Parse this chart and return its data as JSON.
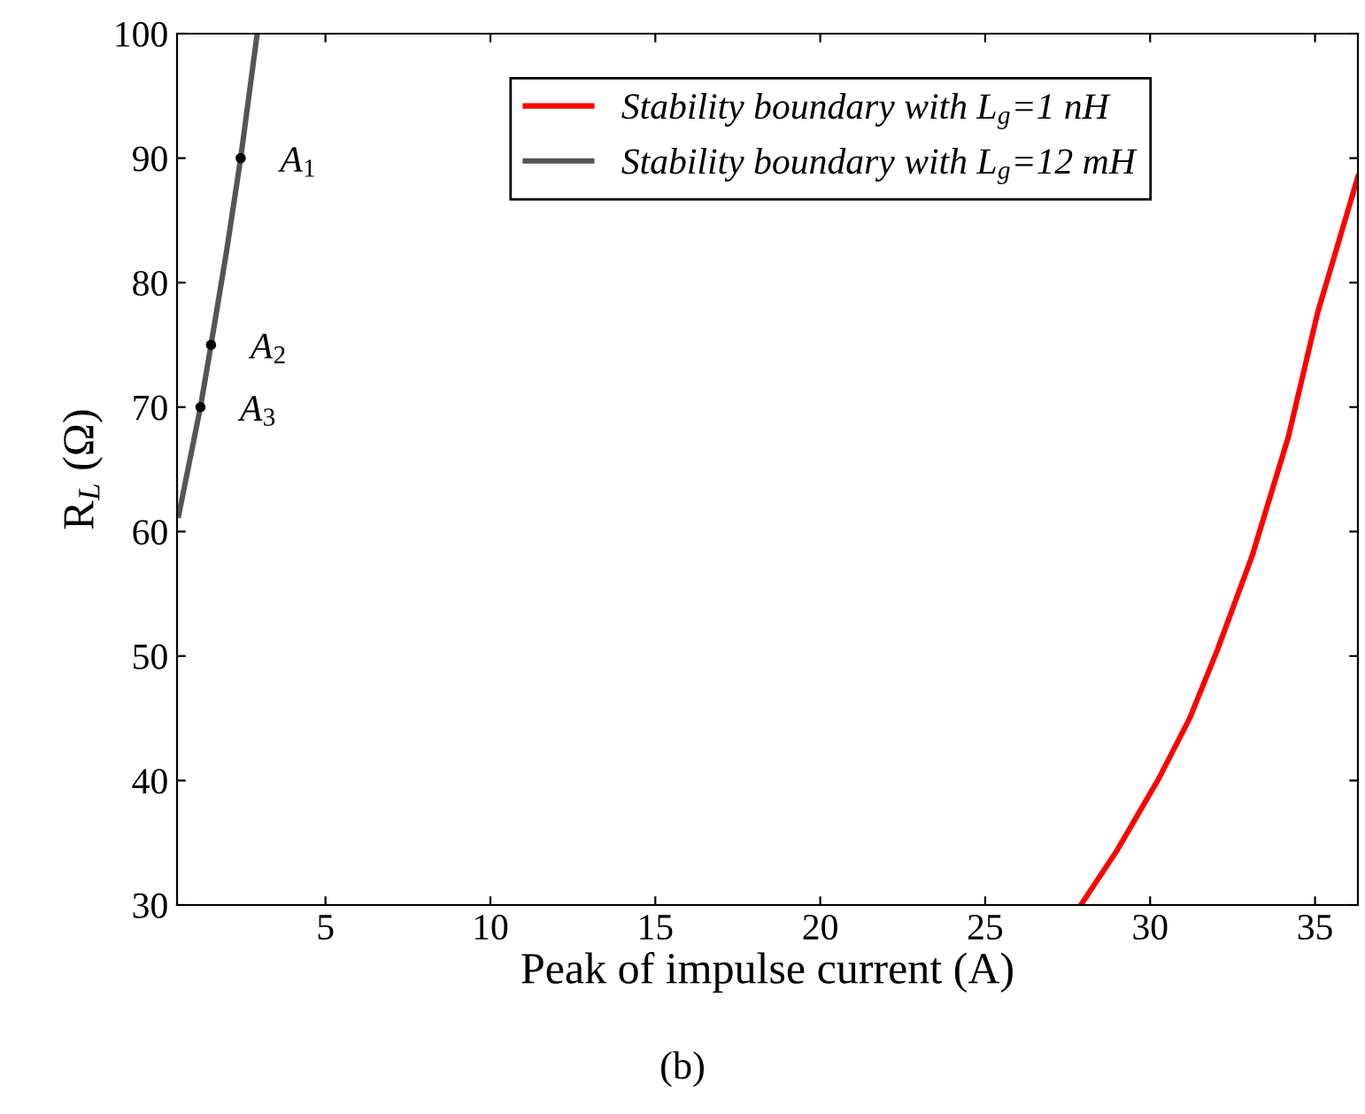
{
  "chart_data": {
    "type": "line",
    "xlabel": "Peak of impulse current (A)",
    "ylabel": "R$_{L}$ (Ω)",
    "series": [
      {
        "name": "Stability boundary with L$_{g}$=1 nH",
        "color": "#ff0000",
        "x": [
          27.9,
          29.0,
          30.25,
          31.2,
          32.04,
          33.1,
          34.19,
          35.08,
          36.3
        ],
        "values": [
          30,
          34.4,
          40.1,
          45.0,
          50.5,
          58.1,
          67.6,
          77.6,
          88.5
        ]
      },
      {
        "name": "Stability boundary with L$_{g}$=12 mH",
        "color": "#555555",
        "x": [
          0.55,
          1.21,
          1.53,
          2.0,
          2.43,
          2.93
        ],
        "values": [
          61.3,
          70,
          75,
          82.5,
          90,
          100
        ]
      },
      {
        "type": "scatter",
        "color": "#000000",
        "x": [
          2.43,
          1.53,
          1.21
        ],
        "values": [
          90,
          75,
          70
        ],
        "marker": "circle"
      }
    ],
    "annotations": [
      {
        "text": "A$_{1}$",
        "x": 2.43,
        "y": 90
      },
      {
        "text": "A$_{2}$",
        "x": 1.53,
        "y": 75
      },
      {
        "text": "A$_{3}$",
        "x": 1.21,
        "y": 70
      },
      "(b)"
    ],
    "xlim": [
      0.5,
      36.3
    ],
    "ylim": [
      30,
      100
    ],
    "xticks": [
      5,
      10,
      15,
      20,
      25,
      30,
      35
    ],
    "yticks": [
      30,
      40,
      50,
      60,
      70,
      80,
      90,
      100
    ],
    "grid": false,
    "legend": "top right"
  }
}
